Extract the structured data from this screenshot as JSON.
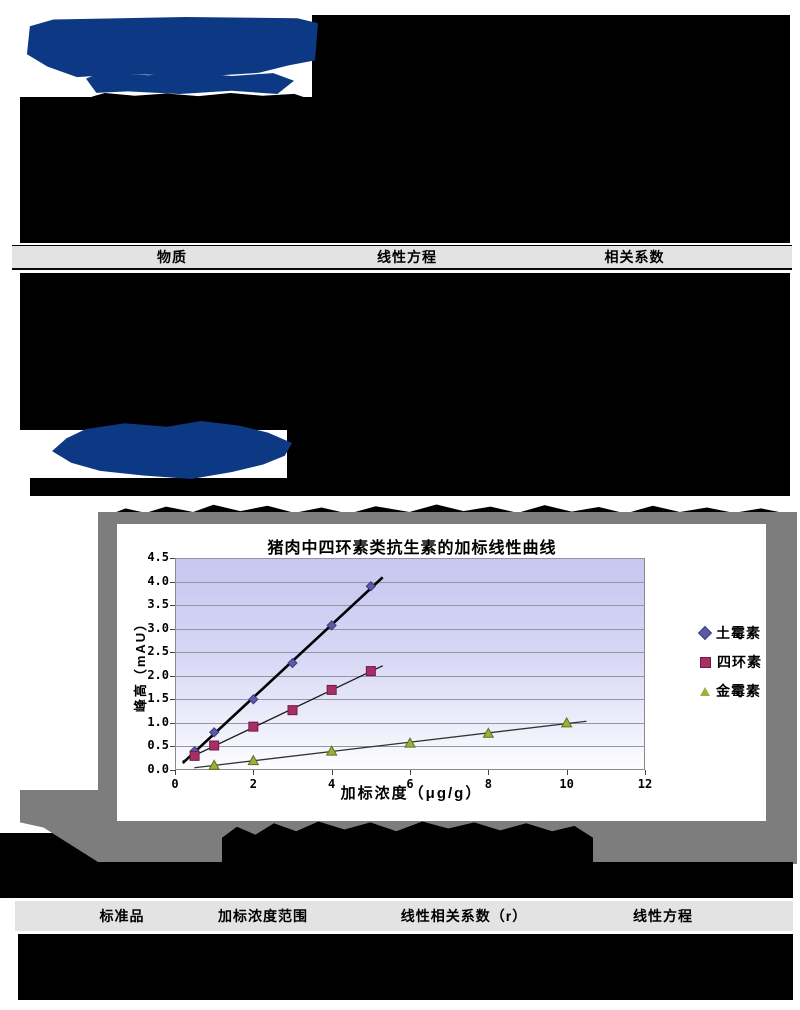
{
  "colors": {
    "heading_blue": "#0d3984",
    "redacted_black": "#000000",
    "table_header_bg": "#e3e3e3",
    "chart_backdrop_gray": "#7d7d7d",
    "plot_gradient_top": "#c7c7f0",
    "plot_gradient_bottom": "#fdfdff",
    "gridline": "#9494a6"
  },
  "table1": {
    "headers": [
      "物质",
      "线性方程",
      "相关系数"
    ]
  },
  "table2": {
    "headers": [
      "标准品",
      "加标浓度范围",
      "线性相关系数（r）",
      "线性方程"
    ]
  },
  "chart_data": {
    "type": "scatter",
    "title": "猪肉中四环素类抗生素的加标线性曲线",
    "xlabel": "加标浓度（μg/g）",
    "ylabel": "峰高（mAU）",
    "xlim": [
      0,
      12
    ],
    "ylim": [
      0,
      4.5
    ],
    "x_ticks": [
      0,
      2,
      4,
      6,
      8,
      10,
      12
    ],
    "y_ticks": [
      "0.0",
      "0.5",
      "1.0",
      "1.5",
      "2.0",
      "2.5",
      "3.0",
      "3.5",
      "4.0",
      "4.5"
    ],
    "legend_position": "right",
    "grid": true,
    "series": [
      {
        "name": "土霉素",
        "marker": "diamond",
        "color": "#5a5aa5",
        "stroke": "#3d3d80",
        "trendline_color": "#000000",
        "trendline_width": 2.6,
        "points": [
          [
            0.5,
            0.4
          ],
          [
            1,
            0.8
          ],
          [
            2,
            1.5
          ],
          [
            3,
            2.27
          ],
          [
            4,
            3.07
          ],
          [
            5,
            3.9
          ]
        ]
      },
      {
        "name": "四环素",
        "marker": "square",
        "color": "#a82e66",
        "stroke": "#6f1d47",
        "trendline_color": "#1a1a1a",
        "trendline_width": 1.3,
        "points": [
          [
            0.5,
            0.3
          ],
          [
            1,
            0.52
          ],
          [
            2,
            0.92
          ],
          [
            3,
            1.27
          ],
          [
            4,
            1.7
          ],
          [
            5,
            2.1
          ]
        ]
      },
      {
        "name": "金霉素",
        "marker": "triangle",
        "color": "#9ab03c",
        "stroke": "#5f7022",
        "trendline_color": "#333333",
        "trendline_width": 1.3,
        "points": [
          [
            1,
            0.1
          ],
          [
            2,
            0.2
          ],
          [
            4,
            0.4
          ],
          [
            6,
            0.57
          ],
          [
            8,
            0.78
          ],
          [
            10,
            1.0
          ]
        ]
      }
    ]
  }
}
